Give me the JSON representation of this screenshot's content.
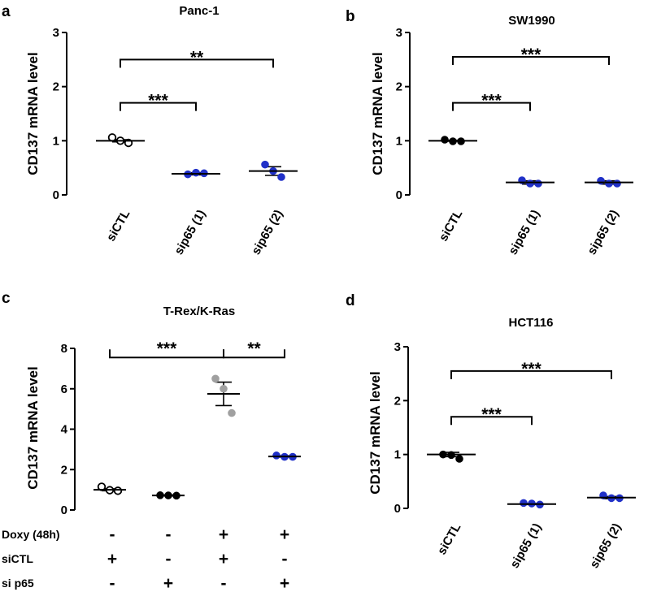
{
  "chart_data": [
    {
      "panel": "a",
      "type": "scatter",
      "title": "Panc-1",
      "ylabel": "CD137 mRNA level",
      "ylim": [
        0,
        3
      ],
      "yticks": [
        "0",
        "1",
        "2",
        "3"
      ],
      "categories": [
        "siCTL",
        "sip65 (1)",
        "sip65 (2)"
      ],
      "means": [
        1.0,
        0.39,
        0.44
      ],
      "errors": [
        0.02,
        0.02,
        0.08
      ],
      "points": [
        [
          1.06,
          1.0,
          0.96
        ],
        [
          0.38,
          0.41,
          0.4
        ],
        [
          0.56,
          0.44,
          0.33
        ]
      ],
      "point_colors": [
        "#000000",
        "#2030c8",
        "#2030c8"
      ],
      "point_fills": [
        "open",
        "filled",
        "filled"
      ],
      "significance": [
        {
          "from": 0,
          "to": 1,
          "y": 1.7,
          "label": "***"
        },
        {
          "from": 0,
          "to": 2,
          "y": 2.5,
          "label": "**"
        }
      ]
    },
    {
      "panel": "b",
      "type": "scatter",
      "title": "SW1990",
      "ylabel": "CD137 mRNA level",
      "ylim": [
        0,
        3
      ],
      "yticks": [
        "0",
        "1",
        "2",
        "3"
      ],
      "categories": [
        "siCTL",
        "sip65 (1)",
        "sip65 (2)"
      ],
      "means": [
        1.0,
        0.23,
        0.23
      ],
      "errors": [
        0.01,
        0.03,
        0.03
      ],
      "points": [
        [
          1.02,
          0.99,
          0.99
        ],
        [
          0.27,
          0.21,
          0.21
        ],
        [
          0.26,
          0.21,
          0.21
        ]
      ],
      "point_colors": [
        "#000000",
        "#2030c8",
        "#2030c8"
      ],
      "point_fills": [
        "filled",
        "filled",
        "filled"
      ],
      "significance": [
        {
          "from": 0,
          "to": 1,
          "y": 1.7,
          "label": "***"
        },
        {
          "from": 0,
          "to": 2,
          "y": 2.55,
          "label": "***"
        }
      ]
    },
    {
      "panel": "c",
      "type": "scatter",
      "title": "T-Rex/K-Ras",
      "ylabel": "CD137 mRNA level",
      "ylim": [
        0,
        8
      ],
      "yticks": [
        "0",
        "2",
        "4",
        "6",
        "8"
      ],
      "means": [
        1.0,
        0.72,
        5.75,
        2.65
      ],
      "errors": [
        0.05,
        0.02,
        0.58,
        0.03
      ],
      "points": [
        [
          1.15,
          0.98,
          0.95
        ],
        [
          0.73,
          0.72,
          0.71
        ],
        [
          6.5,
          6.0,
          4.8
        ],
        [
          2.7,
          2.63,
          2.63
        ]
      ],
      "point_colors": [
        "#000000",
        "#000000",
        "#a0a0a0",
        "#2030c8"
      ],
      "point_fills": [
        "open",
        "filled",
        "filled",
        "filled"
      ],
      "significance": [
        {
          "from": 0,
          "to": 2,
          "y": 7.95,
          "label": "***"
        },
        {
          "from": 2,
          "to": 3,
          "y": 7.95,
          "label": "**"
        }
      ],
      "conditions": {
        "rows": [
          "Doxy (48h)",
          "siCTL",
          "si p65"
        ],
        "values": [
          [
            "-",
            "-",
            "+",
            "+"
          ],
          [
            "+",
            "-",
            "+",
            "-"
          ],
          [
            "-",
            "+",
            "-",
            "+"
          ]
        ]
      }
    },
    {
      "panel": "d",
      "type": "scatter",
      "title": "HCT116",
      "ylabel": "CD137 mRNA level",
      "ylim": [
        0,
        3
      ],
      "yticks": [
        "0",
        "1",
        "2",
        "3"
      ],
      "categories": [
        "siCTL",
        "sip65 (1)",
        "sip65 (2)"
      ],
      "means": [
        1.0,
        0.08,
        0.2
      ],
      "errors": [
        0.04,
        0.01,
        0.02
      ],
      "points": [
        [
          1.0,
          0.99,
          0.92
        ],
        [
          0.1,
          0.09,
          0.07
        ],
        [
          0.24,
          0.19,
          0.19
        ]
      ],
      "point_colors": [
        "#000000",
        "#2030c8",
        "#2030c8"
      ],
      "point_fills": [
        "filled",
        "filled",
        "filled"
      ],
      "significance": [
        {
          "from": 0,
          "to": 1,
          "y": 1.7,
          "label": "***"
        },
        {
          "from": 0,
          "to": 2,
          "y": 2.55,
          "label": "***"
        }
      ]
    }
  ]
}
